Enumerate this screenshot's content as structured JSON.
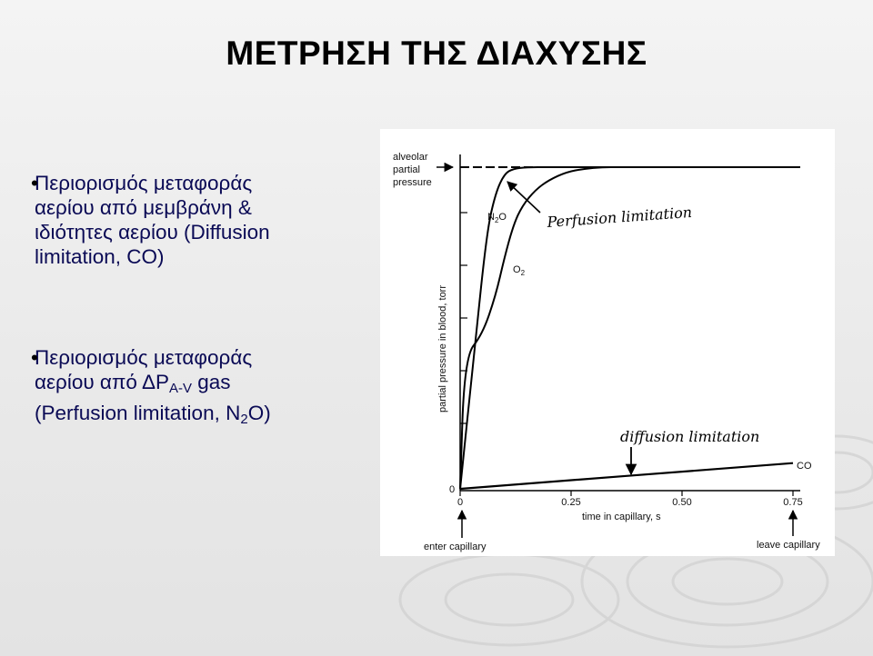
{
  "slide": {
    "title": "ΜΕΤΡΗΣΗ ΤΗΣ ΔΙΑΧΥΣΗΣ",
    "bullet1": {
      "line1": "Περιορισμός μεταφοράς",
      "line2": "αερίου από μεμβράνη &",
      "line3": "ιδιότητες αερίου (Diffusion",
      "line4": "limitation, CO)"
    },
    "bullet2": {
      "line1": "Περιορισμός μεταφοράς",
      "line2_prefix": "αερίου από ΔP",
      "line2_sub": "A-V",
      "line2_suffix": " gas",
      "line3_prefix": "(Perfusion limitation, N",
      "line3_sub": "2",
      "line3_suffix": "O)"
    }
  },
  "chart_data": {
    "type": "line",
    "xlabel": "time in capillary, s",
    "ylabel": "partial pressure in blood, torr",
    "xlim": [
      0,
      0.75
    ],
    "ylim": [
      0,
      1
    ],
    "x_ticks": [
      "0",
      "0.25",
      "0.50",
      "0.75"
    ],
    "y_ticks": [
      "0"
    ],
    "alveolar_label": [
      "alveolar",
      "partial",
      "pressure"
    ],
    "alveolar_level": 1.0,
    "series": [
      {
        "name": "N2O",
        "name_main": "N",
        "name_sub": "2",
        "name_end": "O",
        "x": [
          0,
          0.03,
          0.06,
          0.08,
          0.1,
          0.12,
          0.15,
          0.2,
          0.3,
          0.75
        ],
        "y": [
          0,
          0.4,
          0.8,
          0.92,
          0.98,
          0.995,
          1.0,
          1.0,
          1.0,
          1.0
        ]
      },
      {
        "name": "O2",
        "name_main": "O",
        "name_sub": "2",
        "name_end": "",
        "x": [
          0,
          0.01,
          0.05,
          0.08,
          0.1,
          0.12,
          0.14,
          0.17,
          0.2,
          0.24,
          0.28,
          0.32,
          0.36,
          0.75
        ],
        "y": [
          0,
          0.41,
          0.48,
          0.6,
          0.72,
          0.82,
          0.88,
          0.93,
          0.96,
          0.985,
          0.995,
          1.0,
          1.0,
          1.0
        ]
      },
      {
        "name": "CO",
        "name_main": "CO",
        "name_sub": "",
        "name_end": "",
        "x": [
          0,
          0.75
        ],
        "y": [
          0,
          0.08
        ]
      }
    ],
    "annotations": {
      "perfusion": "Perfusion limitation",
      "diffusion": "diffusion limitation",
      "enter": "enter capillary",
      "leave": "leave capillary"
    }
  }
}
